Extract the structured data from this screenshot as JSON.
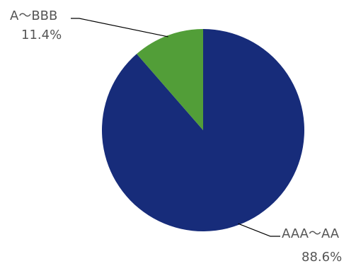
{
  "chart_data": {
    "type": "pie",
    "start_angle_deg": 0,
    "direction": "clockwise",
    "slices": [
      {
        "name": "AAA～AA",
        "value": 88.6,
        "label": "88.6%",
        "color": "#172c7a"
      },
      {
        "name": "A～BBB",
        "value": 11.4,
        "label": "11.4%",
        "color": "#529e38"
      }
    ]
  }
}
